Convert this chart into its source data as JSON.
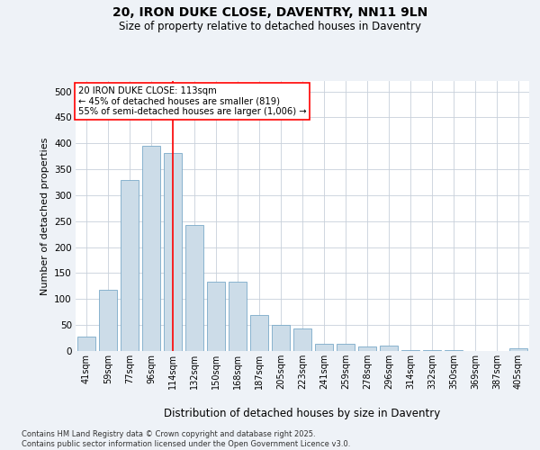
{
  "title": "20, IRON DUKE CLOSE, DAVENTRY, NN11 9LN",
  "subtitle": "Size of property relative to detached houses in Daventry",
  "xlabel": "Distribution of detached houses by size in Daventry",
  "ylabel": "Number of detached properties",
  "bins": [
    "41sqm",
    "59sqm",
    "77sqm",
    "96sqm",
    "114sqm",
    "132sqm",
    "150sqm",
    "168sqm",
    "187sqm",
    "205sqm",
    "223sqm",
    "241sqm",
    "259sqm",
    "278sqm",
    "296sqm",
    "314sqm",
    "332sqm",
    "350sqm",
    "369sqm",
    "387sqm",
    "405sqm"
  ],
  "values": [
    27,
    118,
    330,
    395,
    382,
    242,
    133,
    133,
    70,
    50,
    44,
    14,
    14,
    8,
    11,
    1,
    1,
    1,
    0,
    0,
    5
  ],
  "bar_color": "#ccdce8",
  "bar_edge_color": "#7aaac8",
  "vline_x": 4.0,
  "vline_color": "red",
  "annotation_text": "20 IRON DUKE CLOSE: 113sqm\n← 45% of detached houses are smaller (819)\n55% of semi-detached houses are larger (1,006) →",
  "annotation_box_color": "white",
  "annotation_box_edge": "red",
  "ylim": [
    0,
    520
  ],
  "yticks": [
    0,
    50,
    100,
    150,
    200,
    250,
    300,
    350,
    400,
    450,
    500
  ],
  "footer": "Contains HM Land Registry data © Crown copyright and database right 2025.\nContains public sector information licensed under the Open Government Licence v3.0.",
  "bg_color": "#eef2f7",
  "plot_bg_color": "#ffffff",
  "grid_color": "#c8d0da"
}
